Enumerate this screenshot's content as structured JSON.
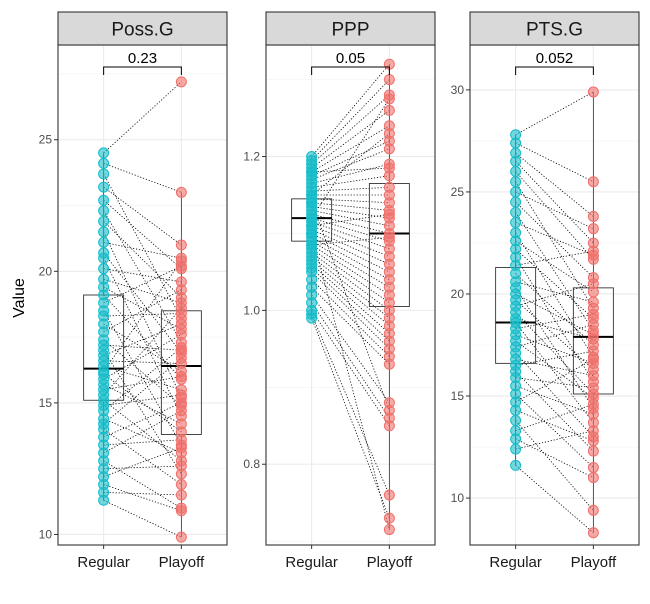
{
  "chart_data": {
    "type": "boxplot",
    "y_axis_label": "Value",
    "groups": [
      "Regular",
      "Playoff"
    ],
    "colors": {
      "Regular": "#16bcc9",
      "Playoff": "#f0706a"
    },
    "panels": [
      {
        "title": "Poss.G",
        "p_value": "0.23",
        "ylim": [
          9.6,
          28.6
        ],
        "yticks": [
          10,
          15,
          20,
          25
        ],
        "box": {
          "Regular": {
            "min": 11.3,
            "q1": 15.1,
            "median": 16.3,
            "q3": 19.1,
            "max": 24.5
          },
          "Playoff": {
            "min": 9.9,
            "q1": 13.8,
            "median": 16.4,
            "q3": 18.5,
            "max": 23.0
          }
        },
        "pairs": [
          [
            24.5,
            27.2
          ],
          [
            24.1,
            23.0
          ],
          [
            23.7,
            18.2
          ],
          [
            23.2,
            21.0
          ],
          [
            22.7,
            20.1
          ],
          [
            22.3,
            17.3
          ],
          [
            21.9,
            19.0
          ],
          [
            21.5,
            15.2
          ],
          [
            21.1,
            20.5
          ],
          [
            20.7,
            16.9
          ],
          [
            20.5,
            14.5
          ],
          [
            20.1,
            19.6
          ],
          [
            19.7,
            18.8
          ],
          [
            19.4,
            17.8
          ],
          [
            19.1,
            15.9
          ],
          [
            18.8,
            20.2
          ],
          [
            18.5,
            13.4
          ],
          [
            18.3,
            18.4
          ],
          [
            18.0,
            16.2
          ],
          [
            17.7,
            19.3
          ],
          [
            17.4,
            14.9
          ],
          [
            17.2,
            17.0
          ],
          [
            17.0,
            12.3
          ],
          [
            16.8,
            18.0
          ],
          [
            16.6,
            16.5
          ],
          [
            16.4,
            15.5
          ],
          [
            16.2,
            20.4
          ],
          [
            16.1,
            13.9
          ],
          [
            15.9,
            17.6
          ],
          [
            15.7,
            14.2
          ],
          [
            15.5,
            16.0
          ],
          [
            15.3,
            18.6
          ],
          [
            15.1,
            12.8
          ],
          [
            14.9,
            15.3
          ],
          [
            14.7,
            17.1
          ],
          [
            14.4,
            13.1
          ],
          [
            14.2,
            16.7
          ],
          [
            14.0,
            11.9
          ],
          [
            13.7,
            15.0
          ],
          [
            13.4,
            13.6
          ],
          [
            13.1,
            14.7
          ],
          [
            12.8,
            11.0
          ],
          [
            12.5,
            12.6
          ],
          [
            12.2,
            13.3
          ],
          [
            11.9,
            10.9
          ],
          [
            11.6,
            11.5
          ],
          [
            11.3,
            9.9
          ]
        ]
      },
      {
        "title": "PPP",
        "p_value": "0.05",
        "ylim": [
          0.695,
          1.345
        ],
        "yticks": [
          0.8,
          1.0,
          1.2
        ],
        "box": {
          "Regular": {
            "min": 0.99,
            "q1": 1.09,
            "median": 1.12,
            "q3": 1.145,
            "max": 1.2
          },
          "Playoff": {
            "min": 0.715,
            "q1": 1.005,
            "median": 1.1,
            "q3": 1.165,
            "max": 1.32
          }
        },
        "pairs": [
          [
            1.2,
            1.32
          ],
          [
            1.195,
            1.3
          ],
          [
            1.19,
            1.28
          ],
          [
            1.185,
            1.26
          ],
          [
            1.18,
            1.24
          ],
          [
            1.175,
            1.22
          ],
          [
            1.17,
            1.21
          ],
          [
            1.165,
            1.19
          ],
          [
            1.16,
            1.175
          ],
          [
            1.155,
            1.16
          ],
          [
            1.15,
            1.15
          ],
          [
            1.145,
            1.14
          ],
          [
            1.14,
            1.13
          ],
          [
            1.135,
            1.12
          ],
          [
            1.13,
            1.11
          ],
          [
            1.125,
            1.1
          ],
          [
            1.12,
            1.09
          ],
          [
            1.115,
            1.08
          ],
          [
            1.11,
            1.07
          ],
          [
            1.105,
            1.06
          ],
          [
            1.1,
            1.05
          ],
          [
            1.095,
            1.04
          ],
          [
            1.09,
            1.03
          ],
          [
            1.085,
            1.02
          ],
          [
            1.08,
            1.01
          ],
          [
            1.075,
            1.0
          ],
          [
            1.07,
            0.99
          ],
          [
            1.065,
            0.98
          ],
          [
            1.06,
            0.97
          ],
          [
            1.055,
            0.96
          ],
          [
            1.05,
            0.95
          ],
          [
            1.04,
            0.94
          ],
          [
            1.03,
            0.93
          ],
          [
            1.02,
            0.88
          ],
          [
            1.01,
            0.86
          ],
          [
            1.0,
            0.85
          ],
          [
            0.995,
            0.76
          ],
          [
            0.99,
            0.73
          ],
          [
            1.1,
            0.715
          ],
          [
            1.12,
            1.275
          ],
          [
            1.15,
            1.23
          ],
          [
            1.18,
            1.185
          ],
          [
            1.11,
            1.125
          ],
          [
            1.085,
            1.095
          ],
          [
            1.14,
            0.87
          ]
        ]
      },
      {
        "title": "PTS.G",
        "p_value": "0.052",
        "ylim": [
          7.7,
          32.2
        ],
        "yticks": [
          10,
          15,
          20,
          25,
          30
        ],
        "box": {
          "Regular": {
            "min": 11.6,
            "q1": 16.6,
            "median": 18.6,
            "q3": 21.3,
            "max": 27.8
          },
          "Playoff": {
            "min": 8.3,
            "q1": 15.1,
            "median": 17.9,
            "q3": 20.3,
            "max": 29.9
          }
        },
        "pairs": [
          [
            27.8,
            29.9
          ],
          [
            27.4,
            25.5
          ],
          [
            26.9,
            23.8
          ],
          [
            26.5,
            22.5
          ],
          [
            26.0,
            21.7
          ],
          [
            25.5,
            19.3
          ],
          [
            25.0,
            23.2
          ],
          [
            24.5,
            20.8
          ],
          [
            24.0,
            18.2
          ],
          [
            23.5,
            21.9
          ],
          [
            23.0,
            16.9
          ],
          [
            22.6,
            20.1
          ],
          [
            22.2,
            18.8
          ],
          [
            21.8,
            15.7
          ],
          [
            21.4,
            22.1
          ],
          [
            21.0,
            17.5
          ],
          [
            20.6,
            19.6
          ],
          [
            20.3,
            14.4
          ],
          [
            20.0,
            18.0
          ],
          [
            19.7,
            16.3
          ],
          [
            19.4,
            20.5
          ],
          [
            19.1,
            15.1
          ],
          [
            18.8,
            17.8
          ],
          [
            18.6,
            13.7
          ],
          [
            18.3,
            19.0
          ],
          [
            18.0,
            16.6
          ],
          [
            17.7,
            14.9
          ],
          [
            17.4,
            18.5
          ],
          [
            17.1,
            13.0
          ],
          [
            16.8,
            16.0
          ],
          [
            16.5,
            17.2
          ],
          [
            16.2,
            12.3
          ],
          [
            15.9,
            15.4
          ],
          [
            15.5,
            14.1
          ],
          [
            15.1,
            11.5
          ],
          [
            14.7,
            16.8
          ],
          [
            14.3,
            12.8
          ],
          [
            13.8,
            9.4
          ],
          [
            13.3,
            14.6
          ],
          [
            12.9,
            11.0
          ],
          [
            12.4,
            13.3
          ],
          [
            11.6,
            8.3
          ]
        ]
      }
    ]
  }
}
